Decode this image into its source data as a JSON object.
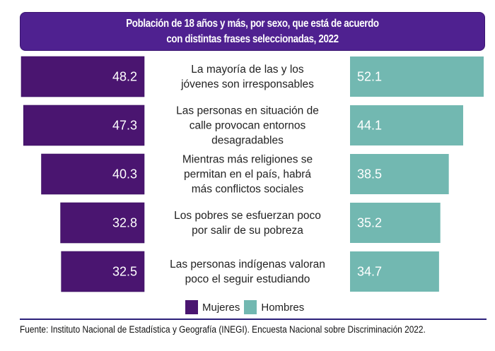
{
  "title_lines": [
    "Población de 18 años y más, por sexo, que está de acuerdo",
    "con distintas frases seleccionadas, 2022"
  ],
  "colors": {
    "mujeres": "#4a1570",
    "hombres": "#72b8b1",
    "title_bg": "#4f2190"
  },
  "chart_data": {
    "type": "bar",
    "orientation": "horizontal-butterfly",
    "title": "Población de 18 años y más, por sexo, que está de acuerdo con distintas frases seleccionadas, 2022",
    "categories": [
      [
        "La mayoría de las y los",
        "jóvenes son irresponsables"
      ],
      [
        "Las personas en situación de",
        "calle provocan entornos",
        "desagradables"
      ],
      [
        "Mientras más religiones se",
        "permitan en el país, habrá",
        "más conflictos sociales"
      ],
      [
        "Los pobres se esfuerzan poco",
        "por salir de su pobreza"
      ],
      [
        "Las personas indígenas valoran",
        "poco el seguir estudiando"
      ]
    ],
    "series": [
      {
        "name": "Mujeres",
        "values": [
          48.2,
          47.3,
          40.3,
          32.8,
          32.5
        ]
      },
      {
        "name": "Hombres",
        "values": [
          52.1,
          44.1,
          38.5,
          35.2,
          34.7
        ]
      }
    ],
    "unit": "%",
    "legend": [
      "Mujeres",
      "Hombres"
    ],
    "legend_position": "bottom-center",
    "grid": false
  },
  "legend": {
    "mujeres": "Mujeres",
    "hombres": "Hombres"
  },
  "source": "Fuente: Instituto Nacional de Estadística y Geografía (INEGI). Encuesta Nacional sobre Discriminación 2022."
}
